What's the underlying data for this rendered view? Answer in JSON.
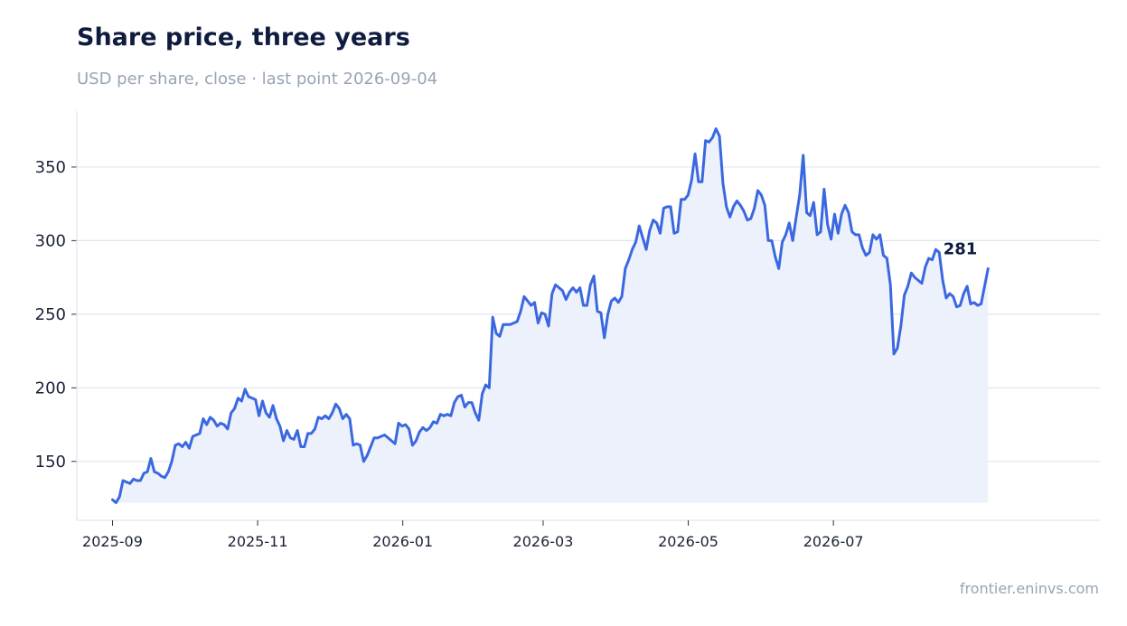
{
  "title": "Share price, three years",
  "subtitle": "USD per share, close · last point 2026-09-04",
  "source": "frontier.eninvs.com",
  "colors": {
    "line": "#3b68e0",
    "area": "#eaf0fc",
    "grid": "#dfe4ee",
    "axis": "#dfe4ee",
    "title": "#0f1c40",
    "muted": "#98a4b6"
  },
  "chart_data": {
    "type": "line",
    "title": "Share price, three years",
    "subtitle": "USD per share, close · last point 2026-09-04",
    "xlabel": "",
    "ylabel": "",
    "x_axis": {
      "type": "date",
      "range": [
        "2025-08-17",
        "2026-10-21"
      ],
      "tick_dates": [
        "2025-09-01",
        "2025-11-01",
        "2026-01-01",
        "2026-03-01",
        "2026-05-01",
        "2026-07-01"
      ],
      "tick_labels": [
        "2025-09",
        "2025-11",
        "2026-01",
        "2026-03",
        "2026-05",
        "2026-07"
      ]
    },
    "y_axis": {
      "range": [
        110,
        388
      ],
      "ticks": [
        150,
        200,
        250,
        300,
        350
      ]
    },
    "grid": "horizontal",
    "legend": "none",
    "baseline": 122,
    "end_label": "281",
    "series": [
      {
        "x_start": "2025-09-01",
        "x_end": "2026-09-04",
        "values": [
          124,
          122,
          126,
          137,
          136,
          135,
          138,
          137,
          137,
          142,
          143,
          152,
          143,
          142,
          140,
          139,
          143,
          150,
          161,
          162,
          160,
          163,
          159,
          167,
          168,
          169,
          179,
          175,
          180,
          178,
          174,
          176,
          175,
          172,
          183,
          186,
          193,
          191,
          199,
          194,
          193,
          192,
          181,
          191,
          183,
          180,
          188,
          179,
          174,
          164,
          171,
          166,
          165,
          171,
          160,
          160,
          169,
          169,
          172,
          180,
          179,
          181,
          179,
          183,
          189,
          186,
          179,
          182,
          179,
          161,
          162,
          161,
          150,
          154,
          160,
          166,
          166,
          167,
          168,
          166,
          164,
          162,
          176,
          174,
          175,
          172,
          161,
          164,
          170,
          173,
          171,
          173,
          177,
          176,
          182,
          181,
          182,
          181,
          190,
          194,
          195,
          187,
          190,
          190,
          183,
          178,
          196,
          202,
          200,
          248,
          237,
          235,
          243,
          243,
          243,
          244,
          245,
          252,
          262,
          259,
          256,
          258,
          244,
          251,
          250,
          242,
          264,
          270,
          268,
          266,
          260,
          265,
          268,
          265,
          268,
          256,
          256,
          270,
          276,
          252,
          251,
          234,
          250,
          259,
          261,
          258,
          262,
          281,
          287,
          294,
          299,
          310,
          302,
          294,
          307,
          314,
          312,
          305,
          322,
          323,
          323,
          305,
          306,
          328,
          328,
          331,
          341,
          359,
          340,
          340,
          368,
          367,
          370,
          376,
          371,
          339,
          323,
          316,
          323,
          327,
          324,
          320,
          314,
          315,
          322,
          334,
          331,
          324,
          300,
          300,
          289,
          281,
          299,
          304,
          312,
          300,
          316,
          331,
          358,
          319,
          317,
          326,
          304,
          306,
          335,
          311,
          301,
          318,
          305,
          318,
          324,
          319,
          306,
          304,
          304,
          295,
          290,
          292,
          304,
          301,
          304,
          290,
          288,
          270,
          223,
          227,
          242,
          263,
          269,
          278,
          275,
          273,
          271,
          282,
          288,
          287,
          294,
          292,
          273,
          261,
          264,
          262,
          255,
          256,
          264,
          269,
          257,
          258,
          256,
          257,
          269,
          281
        ]
      }
    ]
  }
}
